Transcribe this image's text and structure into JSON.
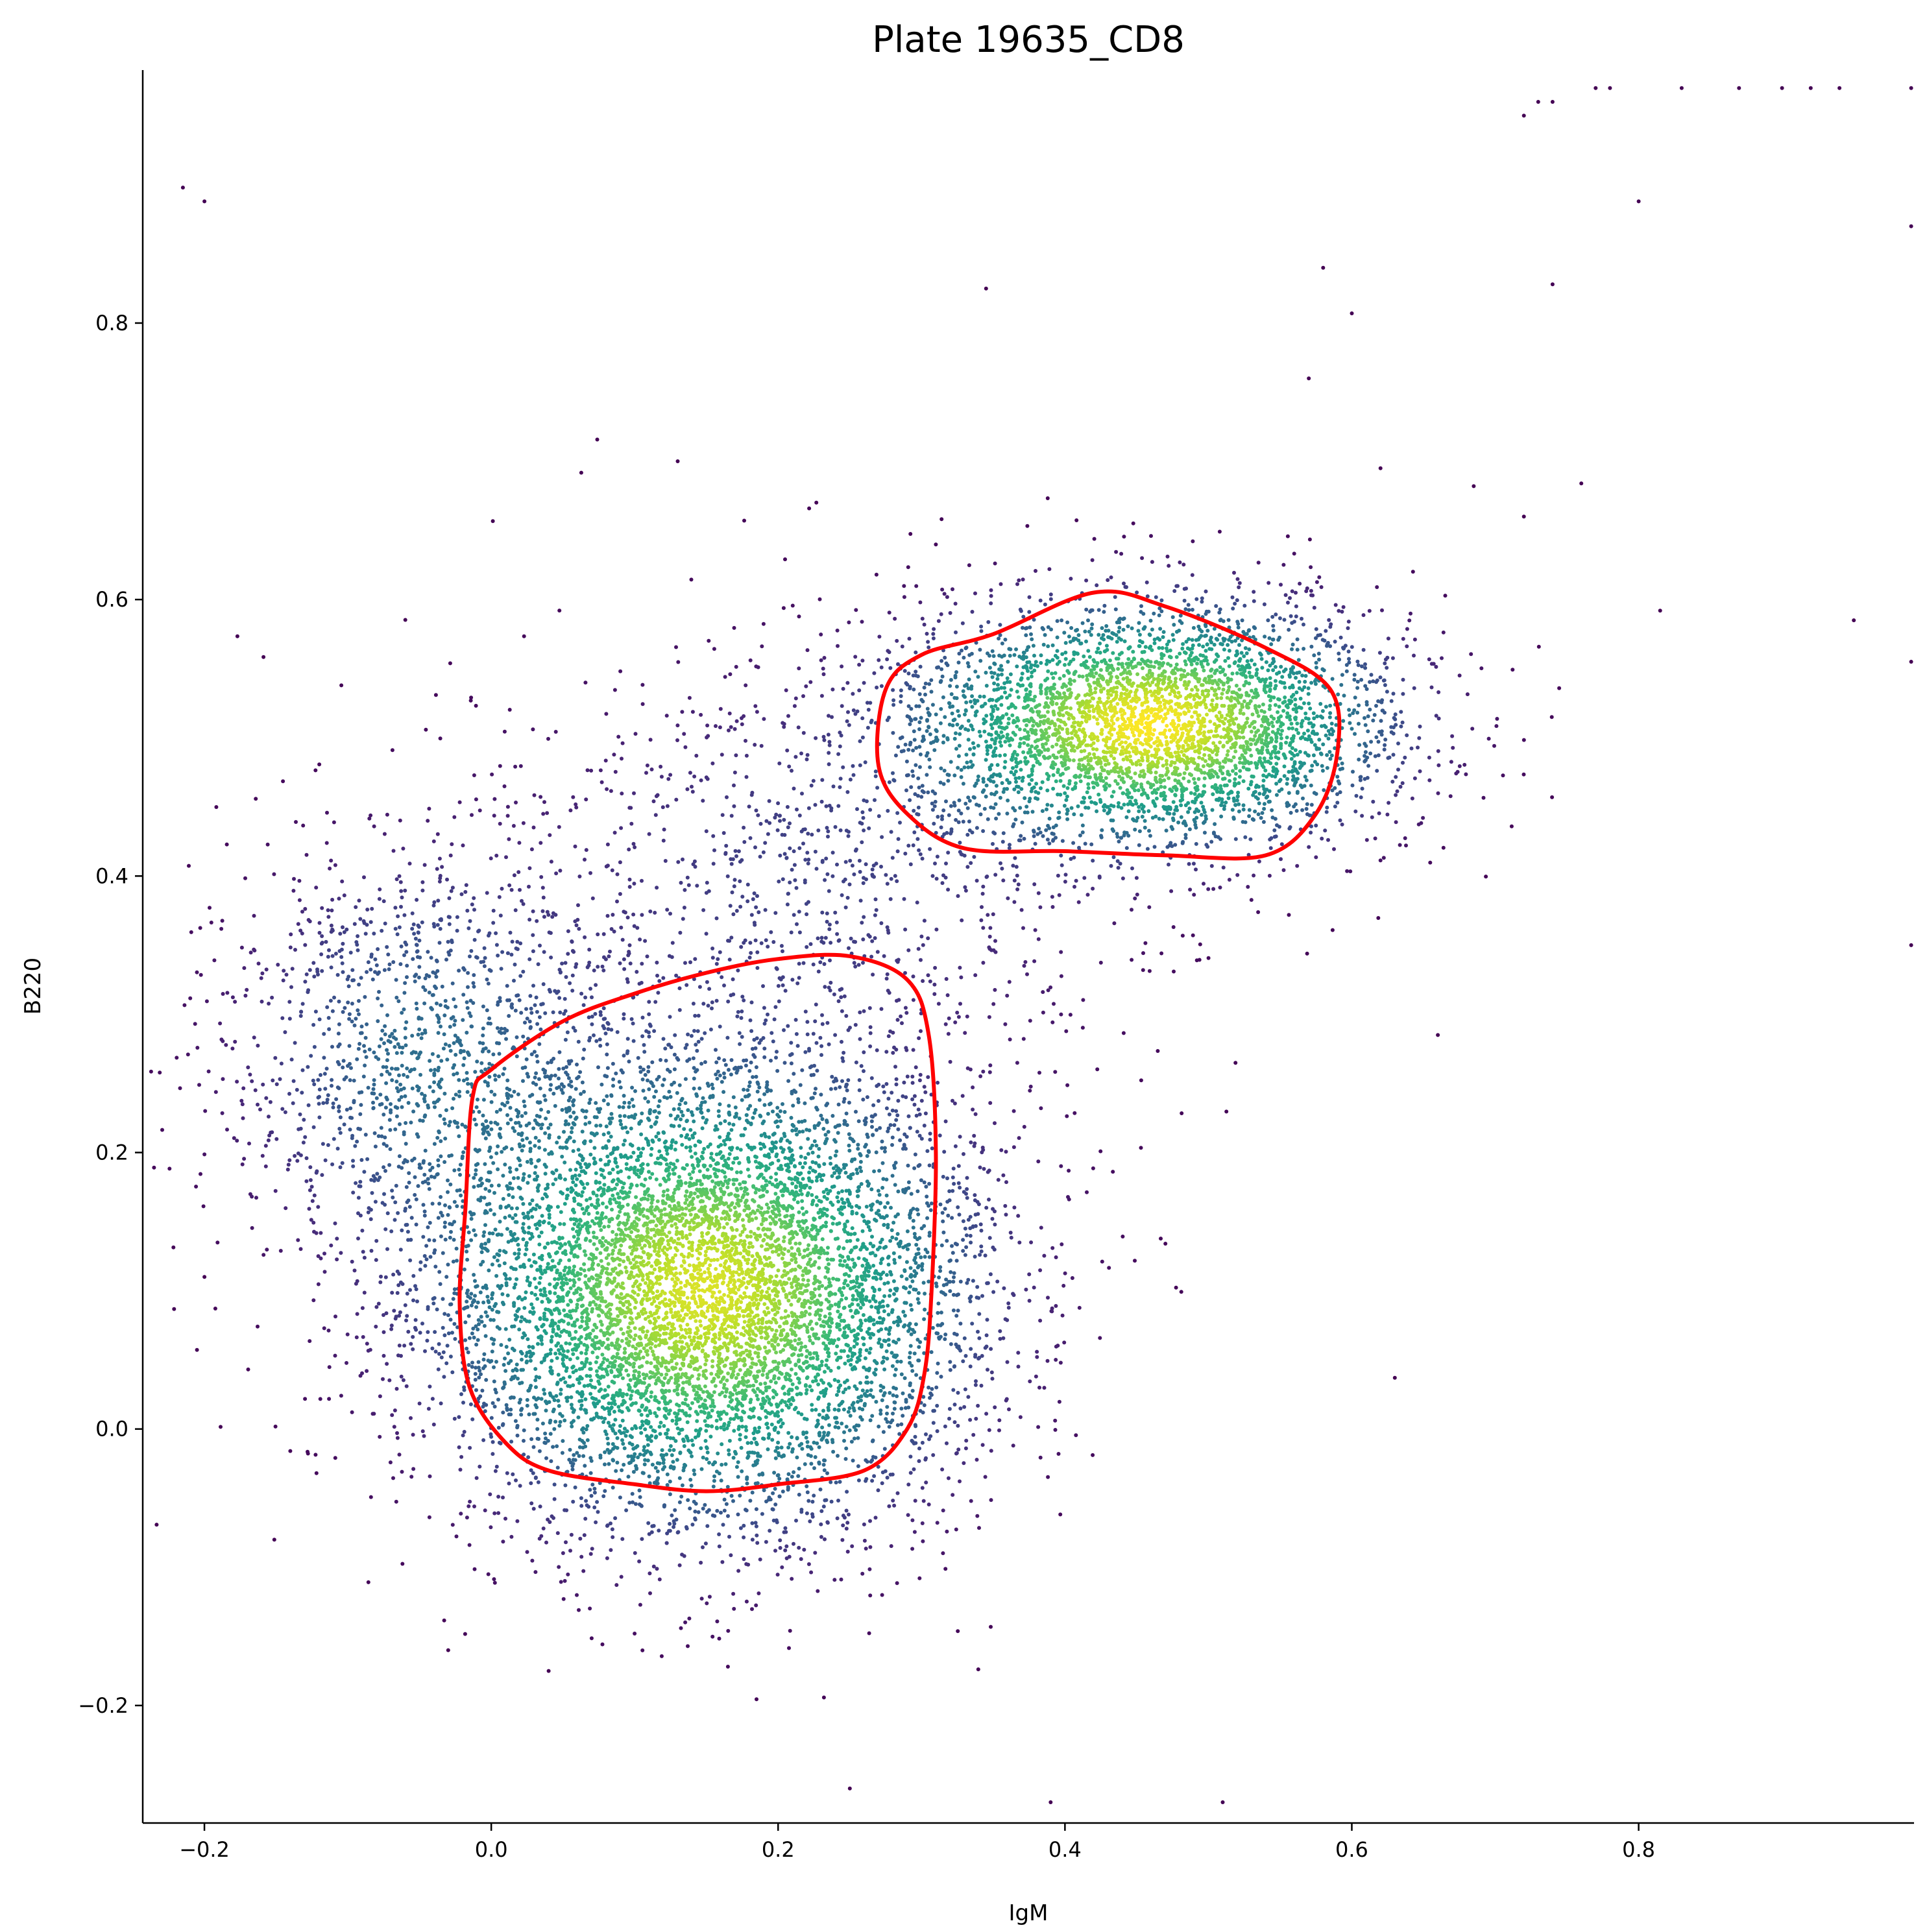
{
  "chart_data": {
    "type": "scatter",
    "title": "Plate 19635_CD8",
    "xlabel": "IgM",
    "ylabel": "B220",
    "xlim": [
      -0.243,
      0.992
    ],
    "ylim": [
      -0.285,
      0.983
    ],
    "xticks": [
      -0.2,
      0.0,
      0.2,
      0.4,
      0.6,
      0.8
    ],
    "xtick_labels": [
      "−0.2",
      "0.0",
      "0.2",
      "0.4",
      "0.6",
      "0.8"
    ],
    "yticks": [
      -0.2,
      0.0,
      0.2,
      0.4,
      0.6,
      0.8
    ],
    "ytick_labels": [
      "−0.2",
      "0.0",
      "0.2",
      "0.4",
      "0.6",
      "0.8"
    ],
    "grid": false,
    "spines": [
      "left",
      "bottom"
    ],
    "point_color_scale": "viridis (point density)",
    "colors": {
      "density_low": "#440154",
      "density_mid": "#21918c",
      "density_high": "#fde725",
      "gate_outline": "#ff0000"
    },
    "populations": [
      {
        "center": [
          0.15,
          0.1
        ],
        "spread": [
          0.095,
          0.085
        ],
        "weight": 0.55
      },
      {
        "center": [
          0.46,
          0.51
        ],
        "spread": [
          0.085,
          0.045
        ],
        "weight": 0.28
      },
      {
        "center": [
          -0.05,
          0.27
        ],
        "spread": [
          0.07,
          0.08
        ],
        "weight": 0.09
      },
      {
        "center": [
          0.22,
          0.4
        ],
        "spread": [
          0.12,
          0.09
        ],
        "weight": 0.08
      }
    ],
    "outlier_points": [
      [
        -0.215,
        0.898
      ],
      [
        -0.2,
        0.888
      ],
      [
        -0.2,
        0.11
      ],
      [
        0.77,
        0.97
      ],
      [
        0.78,
        0.97
      ],
      [
        0.83,
        0.97
      ],
      [
        0.87,
        0.97
      ],
      [
        0.9,
        0.97
      ],
      [
        0.92,
        0.97
      ],
      [
        0.94,
        0.97
      ],
      [
        0.99,
        0.97
      ],
      [
        0.72,
        0.95
      ],
      [
        0.73,
        0.96
      ],
      [
        0.74,
        0.96
      ],
      [
        0.8,
        0.888
      ],
      [
        0.99,
        0.87
      ],
      [
        0.345,
        0.825
      ],
      [
        0.58,
        0.84
      ],
      [
        0.6,
        0.807
      ],
      [
        0.74,
        0.828
      ],
      [
        0.57,
        0.76
      ],
      [
        0.13,
        0.7
      ],
      [
        0.62,
        0.695
      ],
      [
        0.76,
        0.684
      ],
      [
        0.685,
        0.682
      ],
      [
        0.72,
        0.66
      ],
      [
        0.815,
        0.592
      ],
      [
        0.95,
        0.585
      ],
      [
        0.99,
        0.555
      ],
      [
        0.99,
        0.35
      ],
      [
        0.63,
        0.037
      ],
      [
        0.66,
        0.285
      ],
      [
        0.51,
        -0.27
      ],
      [
        0.39,
        -0.27
      ],
      [
        0.25,
        -0.26
      ],
      [
        0.04,
        -0.175
      ],
      [
        -0.03,
        -0.16
      ]
    ],
    "gates": [
      {
        "label": "gate-lower",
        "polygon": [
          [
            0.0,
            0.26
          ],
          [
            0.05,
            0.295
          ],
          [
            0.1,
            0.315
          ],
          [
            0.15,
            0.33
          ],
          [
            0.2,
            0.34
          ],
          [
            0.25,
            0.342
          ],
          [
            0.29,
            0.325
          ],
          [
            0.305,
            0.285
          ],
          [
            0.31,
            0.2
          ],
          [
            0.307,
            0.1
          ],
          [
            0.302,
            0.04
          ],
          [
            0.29,
            0.0
          ],
          [
            0.26,
            -0.03
          ],
          [
            0.2,
            -0.04
          ],
          [
            0.15,
            -0.045
          ],
          [
            0.1,
            -0.04
          ],
          [
            0.04,
            -0.03
          ],
          [
            0.01,
            -0.01
          ],
          [
            -0.015,
            0.03
          ],
          [
            -0.022,
            0.09
          ],
          [
            -0.018,
            0.16
          ],
          [
            -0.013,
            0.24
          ]
        ]
      },
      {
        "label": "gate-upper",
        "polygon": [
          [
            0.35,
            0.575
          ],
          [
            0.42,
            0.605
          ],
          [
            0.47,
            0.595
          ],
          [
            0.54,
            0.565
          ],
          [
            0.585,
            0.535
          ],
          [
            0.59,
            0.49
          ],
          [
            0.575,
            0.445
          ],
          [
            0.54,
            0.415
          ],
          [
            0.47,
            0.415
          ],
          [
            0.4,
            0.418
          ],
          [
            0.33,
            0.42
          ],
          [
            0.29,
            0.445
          ],
          [
            0.27,
            0.48
          ],
          [
            0.275,
            0.535
          ],
          [
            0.3,
            0.56
          ]
        ]
      }
    ]
  }
}
